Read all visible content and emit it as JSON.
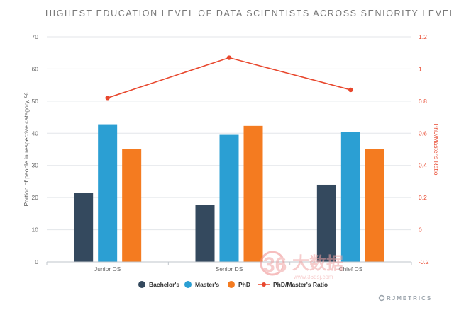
{
  "chart_data": {
    "type": "bar",
    "title": "HIGHEST EDUCATION LEVEL OF DATA SCIENTISTS ACROSS SENIORITY LEVELS",
    "categories": [
      "Junior DS",
      "Senior DS",
      "Chief DS"
    ],
    "ylabel": "Portion of people in respective category, %",
    "ylabel_right": "PhD/Master's Ratio",
    "ylim": [
      0,
      70
    ],
    "yticks": [
      "0",
      "10",
      "20",
      "30",
      "40",
      "50",
      "60",
      "70"
    ],
    "ylim_right": [
      -0.2,
      1.2
    ],
    "yticks_right": [
      "-0.2",
      "0",
      "0.2",
      "0.4",
      "0.6",
      "0.8",
      "1",
      "1.2"
    ],
    "grid": true,
    "legend_position": "bottom",
    "series": [
      {
        "name": "Bachelor's",
        "kind": "bar",
        "color": "#34495e",
        "values": [
          21.5,
          17.8,
          24.0
        ]
      },
      {
        "name": "Master's",
        "kind": "bar",
        "color": "#2b9fd3",
        "values": [
          42.8,
          39.5,
          40.5
        ]
      },
      {
        "name": "PhD",
        "kind": "bar",
        "color": "#f47b20",
        "values": [
          35.2,
          42.3,
          35.2
        ]
      },
      {
        "name": "PhD/Master's Ratio",
        "kind": "line",
        "axis": "right",
        "color": "#e8472d",
        "values": [
          0.82,
          1.07,
          0.87
        ]
      }
    ]
  },
  "branding": {
    "logo_text": "RJMETRICS",
    "watermark_number": "36",
    "watermark_cn": "大数据",
    "watermark_url": "www.36dsj.com"
  }
}
